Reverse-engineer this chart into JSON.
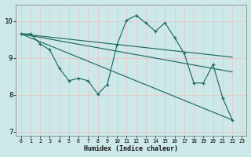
{
  "xlabel": "Humidex (Indice chaleur)",
  "bg_color": "#cde8e8",
  "line_color": "#1e6b62",
  "grid_color": "#b0d8d8",
  "xlim": [
    -0.5,
    23.5
  ],
  "ylim": [
    6.9,
    10.45
  ],
  "yticks": [
    7,
    8,
    9,
    10
  ],
  "xticks": [
    0,
    1,
    2,
    3,
    4,
    5,
    6,
    7,
    8,
    9,
    10,
    11,
    12,
    13,
    14,
    15,
    16,
    17,
    18,
    19,
    20,
    21,
    22,
    23
  ],
  "series": [
    {
      "x": [
        0,
        1,
        2,
        3,
        4,
        5,
        6,
        7,
        8,
        9,
        10,
        11,
        12,
        13,
        14,
        15,
        16,
        17,
        18,
        19,
        20,
        21,
        22
      ],
      "y": [
        9.65,
        9.65,
        9.38,
        9.22,
        8.72,
        8.38,
        8.45,
        8.38,
        8.02,
        8.28,
        9.35,
        10.02,
        10.15,
        9.95,
        9.72,
        9.95,
        9.55,
        9.12,
        8.32,
        8.32,
        8.82,
        7.92,
        7.32
      ],
      "marker": true
    },
    {
      "x": [
        0,
        22
      ],
      "y": [
        9.65,
        9.02
      ],
      "marker": false
    },
    {
      "x": [
        0,
        22
      ],
      "y": [
        9.65,
        8.62
      ],
      "marker": false
    },
    {
      "x": [
        0,
        22
      ],
      "y": [
        9.65,
        7.32
      ],
      "marker": false
    }
  ]
}
